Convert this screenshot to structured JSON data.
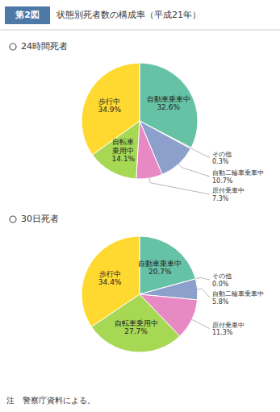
{
  "title": "状態別死者数の構成率（平成21年）",
  "annotations": [
    "第2図",
    "注　警察庁資料による。"
  ],
  "chart_data": [
    {
      "type": "pie",
      "title": "24時間死者",
      "categories": [
        "自動車乗車中",
        "その他",
        "自動二輪車乗車中",
        "原付乗車中",
        "自転車\n乗用中",
        "歩行中"
      ],
      "values": [
        32.6,
        0.3,
        10.7,
        7.3,
        14.1,
        34.9
      ],
      "value_labels": [
        "32.6%",
        "0.3%",
        "10.7%",
        "7.3%",
        "14.1%",
        "34.9%"
      ],
      "data_labels": true
    },
    {
      "type": "pie",
      "title": "30日死者",
      "categories": [
        "自動車乗車中",
        "その他",
        "自動二輪車乗車中",
        "原付乗車中",
        "自転車乗用中",
        "歩行中"
      ],
      "values": [
        20.7,
        0.0,
        5.8,
        11.3,
        27.7,
        34.4
      ],
      "value_labels": [
        "20.7%",
        "0.0%",
        "5.8%",
        "11.3%",
        "27.7%",
        "34.4%"
      ],
      "data_labels": true
    }
  ]
}
